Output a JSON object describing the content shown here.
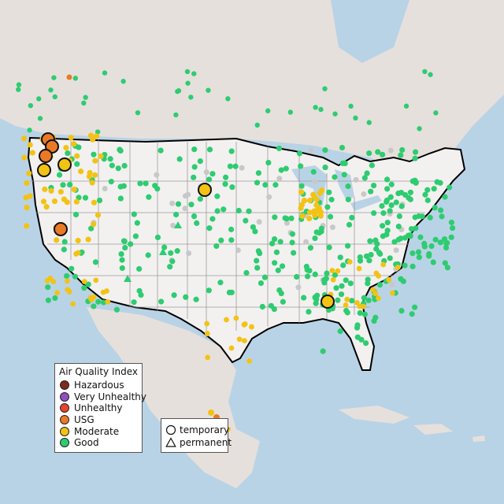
{
  "legend": {
    "title": "Air Quality Index",
    "categories": [
      {
        "label": "Hazardous",
        "color": "#7e2a1c"
      },
      {
        "label": "Very Unhealthy",
        "color": "#8f4fbf"
      },
      {
        "label": "Unhealthy",
        "color": "#e8452e"
      },
      {
        "label": "USG",
        "color": "#ea7a25"
      },
      {
        "label": "Moderate",
        "color": "#f2c315"
      },
      {
        "label": "Good",
        "color": "#2ecc71"
      }
    ]
  },
  "shape_legend": {
    "items": [
      {
        "label": "temporary",
        "shape": "circle-icon"
      },
      {
        "label": "permanent",
        "shape": "triangle-icon"
      }
    ]
  },
  "colors": {
    "water": "#b9d3e6",
    "land_us": "#f3f0f0",
    "land_other": "#e6e0dc",
    "border": "#000000",
    "state_lines": "#9a9a9a",
    "no_data": "#c8c8c8"
  }
}
